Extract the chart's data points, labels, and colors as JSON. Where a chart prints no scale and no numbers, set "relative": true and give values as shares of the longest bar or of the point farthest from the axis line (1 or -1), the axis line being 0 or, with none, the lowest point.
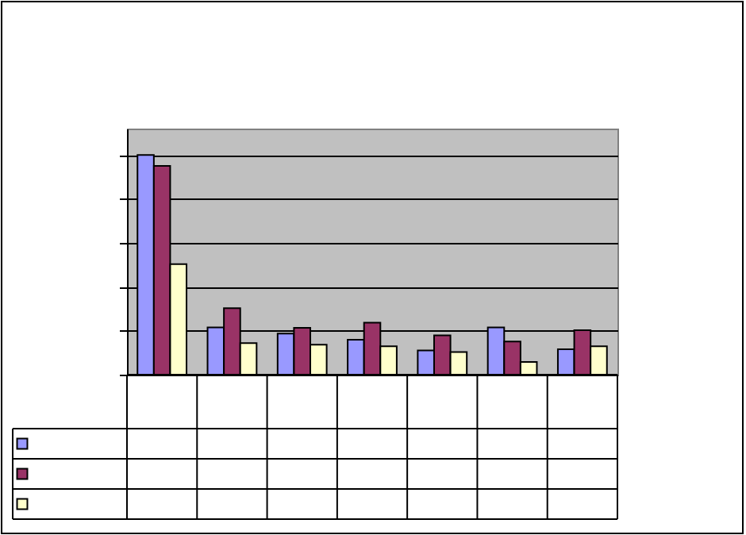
{
  "chart_data": {
    "type": "bar",
    "relative": true,
    "grid": "y",
    "categories": [
      null,
      null,
      null,
      null,
      null,
      null,
      null
    ],
    "series": [
      {
        "color": "#9999ff",
        "values": [
          1,
          0.215,
          0.187,
          0.159,
          0.11,
          0.215,
          0.116
        ]
      },
      {
        "color": "#993366",
        "values": [
          0.95,
          0.303,
          0.213,
          0.237,
          0.179,
          0.151,
          0.202
        ]
      },
      {
        "color": "#ffffcc",
        "values": [
          0.503,
          0.144,
          0.136,
          0.129,
          0.103,
          0.058,
          0.129
        ]
      }
    ]
  }
}
